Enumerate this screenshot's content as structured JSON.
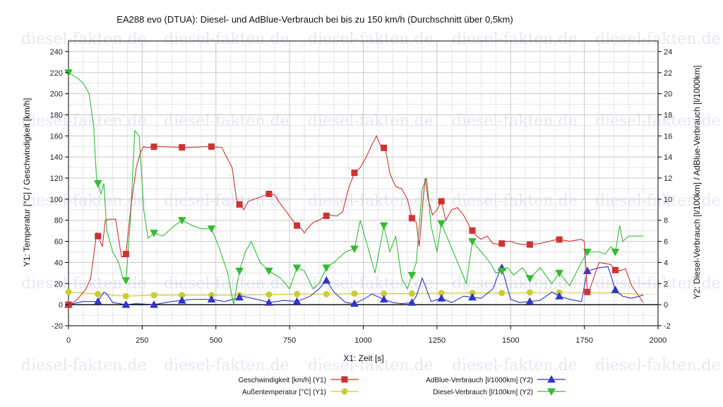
{
  "chart_data": {
    "type": "line",
    "title": "EA288 evo (DTUA): Diesel- und AdBlue-Verbrauch bei bis zu 150 km/h (Durchschnitt über 0,5km)",
    "xlabel": "X1: Zeit [s]",
    "ylabel_left": "Y1: Temperatur [°C] / Geschwindigkeit [km/h]",
    "ylabel_right": "Y2: Diesel-Verbrauch [l/100km] / AdBlue-Verbrauch [l/1000km]",
    "xlim": [
      0,
      2000
    ],
    "ylim_left": [
      -20,
      250
    ],
    "ylim_right": [
      -2,
      25
    ],
    "x_ticks": [
      0,
      250,
      500,
      750,
      1000,
      1250,
      1500,
      1750,
      2000
    ],
    "y_left_ticks": [
      -20,
      0,
      20,
      40,
      60,
      80,
      100,
      120,
      140,
      160,
      180,
      200,
      220,
      240
    ],
    "y_right_ticks": [
      -2,
      0,
      2,
      4,
      6,
      8,
      10,
      12,
      14,
      16,
      18,
      20,
      22,
      24
    ],
    "grid": true,
    "legend_position": "bottom",
    "watermark": "diesel-fakten.de",
    "series": [
      {
        "name": "Geschwindigkeit [km/h] (Y1)",
        "axis": "left",
        "color": "#cc3333",
        "marker": "square",
        "x": [
          0,
          15,
          30,
          45,
          60,
          75,
          85,
          95,
          105,
          115,
          125,
          140,
          160,
          180,
          195,
          205,
          215,
          230,
          245,
          255,
          265,
          300,
          400,
          480,
          520,
          555,
          570,
          580,
          595,
          610,
          630,
          650,
          680,
          700,
          720,
          740,
          760,
          775,
          790,
          800,
          810,
          830,
          850,
          870,
          890,
          910,
          930,
          950,
          970,
          990,
          1010,
          1030,
          1045,
          1060,
          1075,
          1090,
          1100,
          1110,
          1130,
          1150,
          1165,
          1180,
          1190,
          1200,
          1210,
          1220,
          1235,
          1250,
          1265,
          1280,
          1300,
          1320,
          1340,
          1365,
          1385,
          1400,
          1420,
          1440,
          1465,
          1480,
          1500,
          1520,
          1540,
          1565,
          1600,
          1630,
          1660,
          1700,
          1740,
          1750,
          1760,
          1765,
          1800,
          1840,
          1850,
          1870,
          1890,
          1910,
          1930,
          1950
        ],
        "y": [
          0,
          2,
          5,
          10,
          15,
          25,
          45,
          68,
          62,
          55,
          80,
          81,
          81,
          45,
          48,
          75,
          100,
          130,
          145,
          150,
          149,
          150,
          149,
          150,
          149,
          130,
          100,
          95,
          90,
          98,
          100,
          102,
          105,
          104,
          95,
          88,
          80,
          75,
          72,
          68,
          72,
          78,
          80,
          84,
          85,
          84,
          88,
          110,
          125,
          130,
          140,
          152,
          160,
          150,
          148,
          125,
          118,
          112,
          110,
          100,
          82,
          78,
          55,
          90,
          120,
          100,
          85,
          90,
          98,
          80,
          90,
          92,
          85,
          72,
          65,
          62,
          65,
          58,
          57,
          60,
          60,
          58,
          57,
          57,
          58,
          60,
          62,
          60,
          62,
          60,
          12,
          12,
          40,
          38,
          33,
          32,
          34,
          18,
          10,
          2
        ],
        "marker_x": [
          0,
          100,
          195,
          290,
          385,
          485,
          580,
          680,
          775,
          875,
          970,
          1070,
          1165,
          1265,
          1370,
          1470,
          1565,
          1665,
          1760,
          1855
        ]
      },
      {
        "name": "Außentemperatur [°C] (Y1)",
        "axis": "left",
        "color": "#cccc33",
        "marker": "circle",
        "x": [
          0,
          100,
          195,
          290,
          385,
          485,
          580,
          680,
          775,
          875,
          970,
          1070,
          1165,
          1265,
          1370,
          1470,
          1565,
          1665,
          1760,
          1855,
          1950
        ],
        "y": [
          12,
          10,
          8,
          9,
          9,
          9,
          9,
          9.5,
          10,
          10,
          10.5,
          10.5,
          10.5,
          11,
          11,
          11,
          11.5,
          11.5,
          11.5,
          11,
          10
        ],
        "marker_x": [
          0,
          100,
          195,
          290,
          385,
          485,
          580,
          680,
          775,
          875,
          970,
          1070,
          1165,
          1265,
          1370,
          1470,
          1565,
          1665
        ]
      },
      {
        "name": "AdBlue-Verbrauch [l/1000km] (Y2)",
        "axis": "right",
        "color": "#3333cc",
        "marker": "triangle-up",
        "x": [
          0,
          50,
          100,
          120,
          130,
          150,
          195,
          230,
          290,
          350,
          385,
          420,
          485,
          530,
          570,
          590,
          640,
          680,
          730,
          775,
          820,
          850,
          875,
          900,
          940,
          970,
          1000,
          1030,
          1070,
          1100,
          1130,
          1165,
          1180,
          1200,
          1210,
          1230,
          1265,
          1300,
          1340,
          1370,
          1400,
          1440,
          1460,
          1470,
          1480,
          1500,
          1530,
          1565,
          1600,
          1640,
          1665,
          1700,
          1740,
          1760,
          1800,
          1830,
          1840,
          1855,
          1880,
          1910,
          1950
        ],
        "y": [
          0,
          0.3,
          0.3,
          1.2,
          1.0,
          0.2,
          0,
          0.1,
          0,
          0.3,
          0.4,
          0.5,
          0.5,
          0.3,
          0.6,
          0.8,
          0.5,
          0.2,
          0.4,
          0.3,
          0.8,
          1.5,
          2.3,
          1.2,
          0.2,
          0.1,
          0.5,
          1.0,
          0.5,
          0.2,
          0.1,
          0.2,
          0.8,
          2.5,
          1.8,
          0.3,
          0.6,
          0.2,
          0.8,
          0.7,
          0.6,
          1.5,
          3.0,
          3.5,
          2.5,
          0.5,
          0.2,
          0.3,
          0.4,
          1.2,
          0.8,
          0.5,
          0.3,
          3.2,
          3.5,
          3.6,
          2.8,
          1.4,
          0.8,
          0.6,
          0.9
        ],
        "marker_x": [
          0,
          100,
          195,
          290,
          385,
          485,
          580,
          680,
          775,
          875,
          970,
          1070,
          1165,
          1265,
          1370,
          1470,
          1565,
          1665,
          1760,
          1855
        ]
      },
      {
        "name": "Diesel-Verbrauch [l/100km] (Y2)",
        "axis": "right",
        "color": "#33bb33",
        "marker": "triangle-down",
        "x": [
          0,
          30,
          50,
          70,
          85,
          95,
          110,
          120,
          130,
          150,
          170,
          185,
          195,
          210,
          225,
          240,
          255,
          270,
          290,
          320,
          360,
          385,
          420,
          450,
          485,
          510,
          540,
          560,
          580,
          600,
          620,
          650,
          680,
          720,
          750,
          775,
          800,
          830,
          850,
          875,
          900,
          940,
          970,
          990,
          1010,
          1040,
          1070,
          1090,
          1110,
          1130,
          1150,
          1165,
          1180,
          1200,
          1215,
          1230,
          1250,
          1265,
          1290,
          1320,
          1350,
          1370,
          1400,
          1430,
          1450,
          1470,
          1490,
          1510,
          1540,
          1565,
          1600,
          1640,
          1665,
          1700,
          1740,
          1760,
          1800,
          1820,
          1840,
          1855,
          1870,
          1880,
          1900,
          1930,
          1950
        ],
        "y": [
          22,
          21.5,
          21,
          20,
          17,
          12,
          10.5,
          11.5,
          7,
          5,
          4,
          2.5,
          2.3,
          8,
          16.5,
          16,
          9,
          6.3,
          6.8,
          6.5,
          7.5,
          8,
          7.5,
          7.2,
          7.2,
          5.5,
          3,
          0,
          3.2,
          5,
          6,
          4,
          3.2,
          2.5,
          1.5,
          3.5,
          3.2,
          1.5,
          2,
          3.5,
          4,
          5,
          5.3,
          8,
          6,
          3,
          7.5,
          5,
          6.5,
          2.5,
          1.5,
          2.8,
          4,
          11,
          12,
          7.5,
          5,
          7.7,
          6,
          4,
          2,
          6,
          5,
          4,
          3,
          3.2,
          3.5,
          2.8,
          3.5,
          2.5,
          3.5,
          2,
          3,
          1.8,
          4,
          5,
          5,
          4.8,
          5.5,
          5,
          7.5,
          6,
          6.5,
          6.5,
          6.5
        ],
        "marker_x": [
          0,
          100,
          195,
          290,
          385,
          485,
          580,
          680,
          775,
          875,
          970,
          1070,
          1165,
          1265,
          1370,
          1470,
          1565,
          1665,
          1760,
          1855
        ]
      }
    ]
  }
}
